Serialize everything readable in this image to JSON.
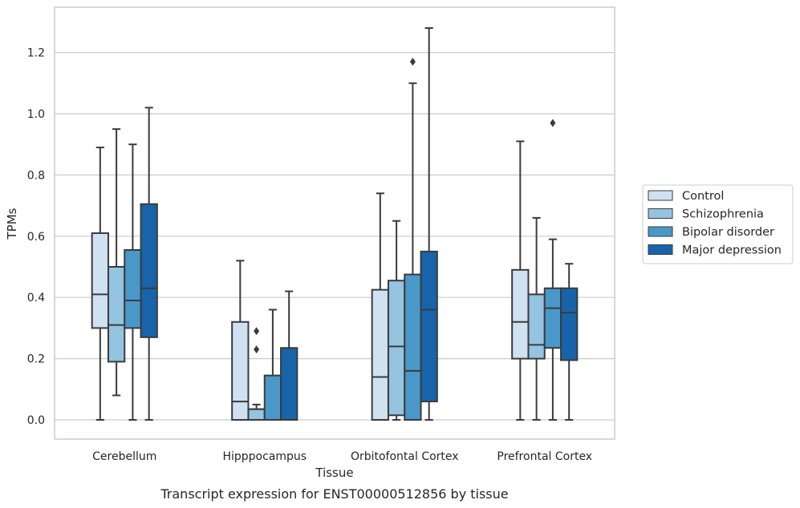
{
  "chart_data": {
    "type": "box",
    "caption": "Transcript expression for ENST00000512856 by tissue",
    "xlabel": "Tissue",
    "ylabel": "TPMs",
    "ylim": [
      -0.063,
      1.348
    ],
    "yticks": [
      0.0,
      0.2,
      0.4,
      0.6,
      0.8,
      1.0,
      1.2
    ],
    "ytick_labels": [
      "0.0",
      "0.2",
      "0.4",
      "0.6",
      "0.8",
      "1.0",
      "1.2"
    ],
    "grid": "horizontal",
    "legend_position": "right",
    "categories": [
      "Cerebellum",
      "Hipppocampus",
      "Orbitofontal Cortex",
      "Prefrontal Cortex"
    ],
    "series": [
      {
        "name": "Control",
        "color": "#d0e1f2",
        "boxes": [
          {
            "min": 0.0,
            "q1": 0.3,
            "median": 0.41,
            "q3": 0.61,
            "max": 0.89,
            "outliers": []
          },
          {
            "min": 0.0,
            "q1": 0.0,
            "median": 0.06,
            "q3": 0.32,
            "max": 0.52,
            "outliers": []
          },
          {
            "min": 0.0,
            "q1": 0.0,
            "median": 0.14,
            "q3": 0.425,
            "max": 0.74,
            "outliers": []
          },
          {
            "min": 0.0,
            "q1": 0.2,
            "median": 0.32,
            "q3": 0.49,
            "max": 0.91,
            "outliers": []
          }
        ]
      },
      {
        "name": "Schizophrenia",
        "color": "#94c4df",
        "boxes": [
          {
            "min": 0.08,
            "q1": 0.19,
            "median": 0.31,
            "q3": 0.5,
            "max": 0.95,
            "outliers": []
          },
          {
            "min": 0.0,
            "q1": 0.0,
            "median": 0.035,
            "q3": 0.035,
            "max": 0.05,
            "outliers": [
              0.23,
              0.29
            ]
          },
          {
            "min": 0.0,
            "q1": 0.015,
            "median": 0.24,
            "q3": 0.455,
            "max": 0.65,
            "outliers": []
          },
          {
            "min": 0.0,
            "q1": 0.2,
            "median": 0.245,
            "q3": 0.41,
            "max": 0.66,
            "outliers": []
          }
        ]
      },
      {
        "name": "Bipolar disorder",
        "color": "#4a98c9",
        "boxes": [
          {
            "min": 0.0,
            "q1": 0.3,
            "median": 0.39,
            "q3": 0.555,
            "max": 0.9,
            "outliers": []
          },
          {
            "min": 0.0,
            "q1": 0.0,
            "median": 0.0,
            "q3": 0.145,
            "max": 0.36,
            "outliers": []
          },
          {
            "min": 0.0,
            "q1": 0.0,
            "median": 0.16,
            "q3": 0.475,
            "max": 1.1,
            "outliers": [
              1.17
            ]
          },
          {
            "min": 0.0,
            "q1": 0.235,
            "median": 0.365,
            "q3": 0.43,
            "max": 0.59,
            "outliers": [
              0.97
            ]
          }
        ]
      },
      {
        "name": "Major depression",
        "color": "#1764ab",
        "boxes": [
          {
            "min": 0.0,
            "q1": 0.27,
            "median": 0.43,
            "q3": 0.705,
            "max": 1.02,
            "outliers": []
          },
          {
            "min": 0.0,
            "q1": 0.0,
            "median": 0.0,
            "q3": 0.235,
            "max": 0.42,
            "outliers": []
          },
          {
            "min": 0.0,
            "q1": 0.06,
            "median": 0.36,
            "q3": 0.55,
            "max": 1.28,
            "outliers": []
          },
          {
            "min": 0.0,
            "q1": 0.195,
            "median": 0.35,
            "q3": 0.43,
            "max": 0.51,
            "outliers": []
          }
        ]
      }
    ]
  }
}
